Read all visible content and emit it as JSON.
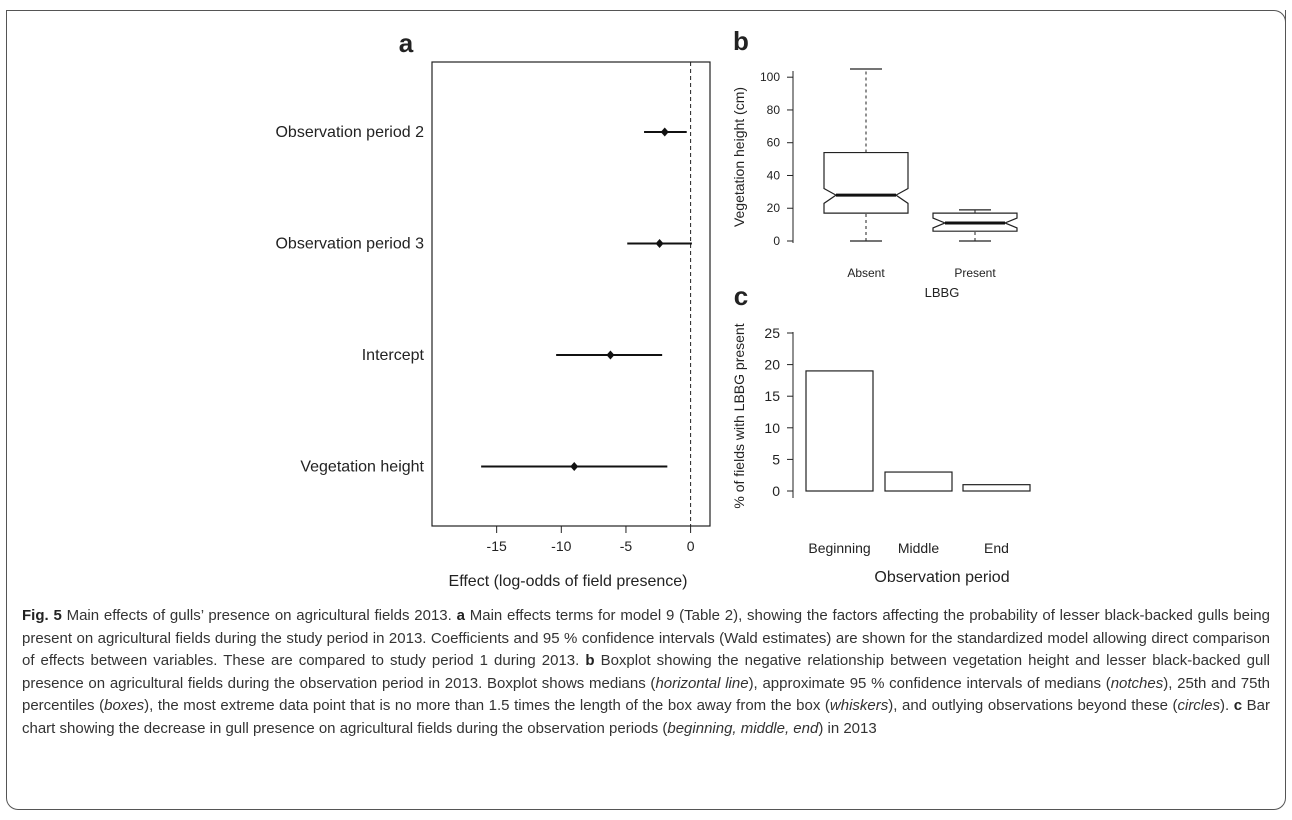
{
  "chart_data": [
    {
      "panel": "a",
      "type": "scatter",
      "categories": [
        "Observation period 2",
        "Observation period 3",
        "Intercept",
        "Vegetation height"
      ],
      "estimates": [
        -2.0,
        -2.4,
        -6.2,
        -9.0
      ],
      "ci_low": [
        -3.6,
        -4.9,
        -10.4,
        -16.2
      ],
      "ci_high": [
        -0.3,
        0.1,
        -2.2,
        -1.8
      ],
      "xlim": [
        -20,
        1.5
      ],
      "xticks": [
        -15,
        -10,
        -5,
        0
      ],
      "xtick_labels": [
        "-15",
        "-10",
        "-5",
        "0"
      ],
      "reference_line": 0,
      "xlabel": "Effect (log-odds of field presence)"
    },
    {
      "panel": "b",
      "type": "boxplot",
      "categories": [
        "Absent",
        "Present"
      ],
      "boxes": [
        {
          "whisker_low": 0,
          "q1": 17,
          "median": 28,
          "q3": 54,
          "whisker_high": 105,
          "notch_low": 23,
          "notch_high": 32
        },
        {
          "whisker_low": 0,
          "q1": 6,
          "median": 11,
          "q3": 17,
          "whisker_high": 19,
          "notch_low": 8,
          "notch_high": 14
        }
      ],
      "ylim": [
        0,
        105
      ],
      "yticks": [
        0,
        20,
        40,
        60,
        80,
        100
      ],
      "ytick_labels": [
        "0",
        "20",
        "40",
        "60",
        "80",
        "100"
      ],
      "ylabel": "Vegetation height (cm)",
      "xlabel": "LBBG"
    },
    {
      "panel": "c",
      "type": "bar",
      "categories": [
        "Beginning",
        "Middle",
        "End"
      ],
      "values": [
        19,
        3,
        1
      ],
      "ylim": [
        0,
        25
      ],
      "yticks": [
        0,
        5,
        10,
        15,
        20,
        25
      ],
      "ytick_labels": [
        "0",
        "5",
        "10",
        "15",
        "20",
        "25"
      ],
      "ylabel": "% of fields with LBBG present",
      "xlabel": "Observation period"
    }
  ],
  "caption": {
    "fig_label": "Fig. 5",
    "title": " Main effects of gulls’ presence on agricultural fields 2013. ",
    "a_label": "a",
    "a_text": " Main effects terms for model 9 (Table 2), showing the factors affecting the probability of lesser black-backed gulls being present on agricultural fields during the study period in 2013. Coefficients and 95 % confidence intervals (Wald estimates) are shown for the standardized model allowing direct comparison of effects between variables. These are compared to study period 1 during 2013. ",
    "b_label": "b",
    "b_text_1": " Boxplot showing the negative relationship between vegetation height and lesser black-backed gull presence on agricultural fields during the observation period in 2013. Boxplot shows medians (",
    "b_it_1": "horizontal line",
    "b_text_2": "), approximate 95 % confidence intervals of medians (",
    "b_it_2": "notches",
    "b_text_3": "), 25th and 75th percentiles (",
    "b_it_3": "boxes",
    "b_text_4": "), the most extreme data point that is no more than 1.5 times the length of the box away from the box (",
    "b_it_4": "whiskers",
    "b_text_5": "), and outlying observations beyond these (",
    "b_it_5": "circles",
    "b_text_6": "). ",
    "c_label": "c",
    "c_text_1": " Bar chart showing the decrease in gull presence on agricultural fields during the observation periods (",
    "c_it_1": "beginning, middle, end",
    "c_text_2": ") in 2013"
  }
}
